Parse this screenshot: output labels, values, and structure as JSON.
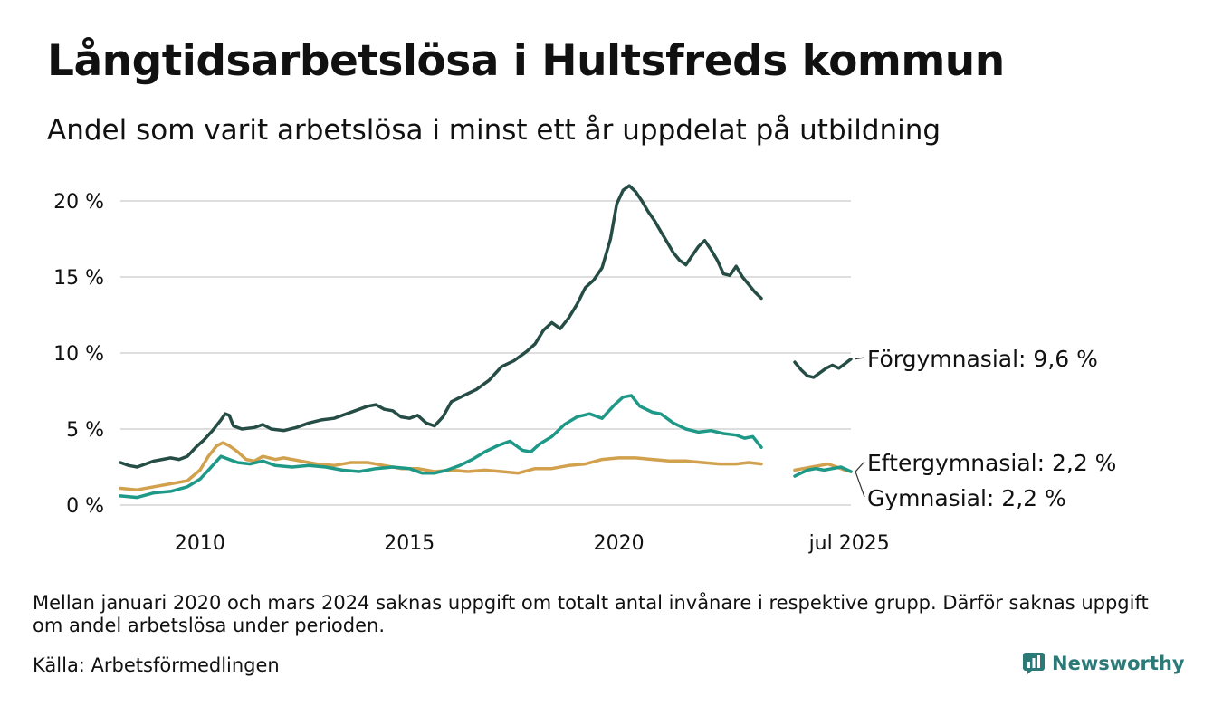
{
  "title": "Långtidsarbetslösa i Hultsfreds kommun",
  "subtitle": "Andel som varit arbetslösa i minst ett år uppdelat på utbildning",
  "note": "Mellan januari 2020 och mars 2024 saknas uppgift om totalt antal invånare i respektive grupp. Därför saknas uppgift om andel arbetslösa under perioden.",
  "source": "Källa: Arbetsförmedlingen",
  "brand": "Newsworthy",
  "chart_data": {
    "type": "line",
    "title": "Långtidsarbetslösa i Hultsfreds kommun",
    "subtitle": "Andel som varit arbetslösa i minst ett år uppdelat på utbildning",
    "y_ticks": [
      0,
      5,
      10,
      15,
      20
    ],
    "y_tick_labels": [
      "0 %",
      "5 %",
      "10 %",
      "15 %",
      "20 %"
    ],
    "ylim": [
      0,
      21.5
    ],
    "x_ticks": [
      2010,
      2015,
      2020,
      2025.5
    ],
    "x_tick_labels": [
      "2010",
      "2015",
      "2020",
      "jul 2025"
    ],
    "xlim": [
      2008.1,
      2025.54
    ],
    "grid": true,
    "legend": "direct labels at right end of lines",
    "series": [
      {
        "name": "Förgymnasial",
        "end_label": "Förgymnasial: 9,6 %",
        "color": "#264d45",
        "segments": [
          [
            [
              2008.1,
              2.8
            ],
            [
              2008.3,
              2.6
            ],
            [
              2008.5,
              2.5
            ],
            [
              2008.7,
              2.7
            ],
            [
              2008.9,
              2.9
            ],
            [
              2009.1,
              3.0
            ],
            [
              2009.3,
              3.1
            ],
            [
              2009.5,
              3.0
            ],
            [
              2009.7,
              3.2
            ],
            [
              2009.9,
              3.8
            ],
            [
              2010.1,
              4.3
            ],
            [
              2010.3,
              4.9
            ],
            [
              2010.5,
              5.6
            ],
            [
              2010.6,
              6.0
            ],
            [
              2010.7,
              5.9
            ],
            [
              2010.8,
              5.2
            ],
            [
              2011.0,
              5.0
            ],
            [
              2011.3,
              5.1
            ],
            [
              2011.5,
              5.3
            ],
            [
              2011.7,
              5.0
            ],
            [
              2012.0,
              4.9
            ],
            [
              2012.3,
              5.1
            ],
            [
              2012.6,
              5.4
            ],
            [
              2012.9,
              5.6
            ],
            [
              2013.2,
              5.7
            ],
            [
              2013.5,
              6.0
            ],
            [
              2013.8,
              6.3
            ],
            [
              2014.0,
              6.5
            ],
            [
              2014.2,
              6.6
            ],
            [
              2014.4,
              6.3
            ],
            [
              2014.6,
              6.2
            ],
            [
              2014.8,
              5.8
            ],
            [
              2015.0,
              5.7
            ],
            [
              2015.2,
              5.9
            ],
            [
              2015.4,
              5.4
            ],
            [
              2015.6,
              5.2
            ],
            [
              2015.8,
              5.8
            ],
            [
              2016.0,
              6.8
            ],
            [
              2016.3,
              7.2
            ],
            [
              2016.6,
              7.6
            ],
            [
              2016.9,
              8.2
            ],
            [
              2017.2,
              9.1
            ],
            [
              2017.5,
              9.5
            ],
            [
              2017.8,
              10.1
            ],
            [
              2018.0,
              10.6
            ],
            [
              2018.2,
              11.5
            ],
            [
              2018.4,
              12.0
            ],
            [
              2018.6,
              11.6
            ],
            [
              2018.8,
              12.3
            ],
            [
              2019.0,
              13.2
            ],
            [
              2019.2,
              14.3
            ],
            [
              2019.4,
              14.8
            ],
            [
              2019.6,
              15.6
            ],
            [
              2019.8,
              17.5
            ],
            [
              2019.95,
              19.8
            ],
            [
              2020.1,
              20.7
            ],
            [
              2020.25,
              21.0
            ],
            [
              2020.4,
              20.6
            ],
            [
              2020.55,
              20.0
            ],
            [
              2020.7,
              19.3
            ],
            [
              2020.85,
              18.7
            ],
            [
              2021.0,
              18.0
            ],
            [
              2021.15,
              17.3
            ],
            [
              2021.3,
              16.6
            ],
            [
              2021.45,
              16.1
            ],
            [
              2021.6,
              15.8
            ],
            [
              2021.75,
              16.4
            ],
            [
              2021.9,
              17.0
            ],
            [
              2022.05,
              17.4
            ],
            [
              2022.2,
              16.8
            ],
            [
              2022.35,
              16.1
            ],
            [
              2022.5,
              15.2
            ],
            [
              2022.65,
              15.1
            ],
            [
              2022.8,
              15.7
            ],
            [
              2022.95,
              15.0
            ],
            [
              2023.1,
              14.5
            ],
            [
              2023.25,
              14.0
            ],
            [
              2023.4,
              13.6
            ]
          ],
          [
            [
              2024.2,
              9.4
            ],
            [
              2024.35,
              8.9
            ],
            [
              2024.5,
              8.5
            ],
            [
              2024.65,
              8.4
            ],
            [
              2024.8,
              8.7
            ],
            [
              2024.95,
              9.0
            ],
            [
              2025.1,
              9.2
            ],
            [
              2025.25,
              9.0
            ],
            [
              2025.4,
              9.3
            ],
            [
              2025.54,
              9.6
            ]
          ]
        ]
      },
      {
        "name": "Eftergymnasial",
        "end_label": "Eftergymnasial: 2,2 %",
        "color": "#d1a14e",
        "segments": [
          [
            [
              2008.1,
              1.1
            ],
            [
              2008.5,
              1.0
            ],
            [
              2008.9,
              1.2
            ],
            [
              2009.3,
              1.4
            ],
            [
              2009.7,
              1.6
            ],
            [
              2010.0,
              2.3
            ],
            [
              2010.2,
              3.2
            ],
            [
              2010.4,
              3.9
            ],
            [
              2010.55,
              4.1
            ],
            [
              2010.7,
              3.9
            ],
            [
              2010.9,
              3.5
            ],
            [
              2011.1,
              3.0
            ],
            [
              2011.3,
              2.9
            ],
            [
              2011.5,
              3.2
            ],
            [
              2011.8,
              3.0
            ],
            [
              2012.0,
              3.1
            ],
            [
              2012.4,
              2.9
            ],
            [
              2012.8,
              2.7
            ],
            [
              2013.2,
              2.6
            ],
            [
              2013.6,
              2.8
            ],
            [
              2014.0,
              2.8
            ],
            [
              2014.4,
              2.6
            ],
            [
              2014.8,
              2.4
            ],
            [
              2015.2,
              2.4
            ],
            [
              2015.6,
              2.2
            ],
            [
              2016.0,
              2.3
            ],
            [
              2016.4,
              2.2
            ],
            [
              2016.8,
              2.3
            ],
            [
              2017.2,
              2.2
            ],
            [
              2017.6,
              2.1
            ],
            [
              2018.0,
              2.4
            ],
            [
              2018.4,
              2.4
            ],
            [
              2018.8,
              2.6
            ],
            [
              2019.2,
              2.7
            ],
            [
              2019.6,
              3.0
            ],
            [
              2020.0,
              3.1
            ],
            [
              2020.4,
              3.1
            ],
            [
              2020.8,
              3.0
            ],
            [
              2021.2,
              2.9
            ],
            [
              2021.6,
              2.9
            ],
            [
              2022.0,
              2.8
            ],
            [
              2022.4,
              2.7
            ],
            [
              2022.8,
              2.7
            ],
            [
              2023.1,
              2.8
            ],
            [
              2023.4,
              2.7
            ]
          ],
          [
            [
              2024.2,
              2.3
            ],
            [
              2024.4,
              2.4
            ],
            [
              2024.6,
              2.5
            ],
            [
              2024.8,
              2.6
            ],
            [
              2025.0,
              2.7
            ],
            [
              2025.2,
              2.5
            ],
            [
              2025.4,
              2.3
            ],
            [
              2025.54,
              2.2
            ]
          ]
        ]
      },
      {
        "name": "Gymnasial",
        "end_label": "Gymnasial: 2,2 %",
        "color": "#1e9987",
        "segments": [
          [
            [
              2008.1,
              0.6
            ],
            [
              2008.5,
              0.5
            ],
            [
              2008.9,
              0.8
            ],
            [
              2009.3,
              0.9
            ],
            [
              2009.7,
              1.2
            ],
            [
              2010.0,
              1.7
            ],
            [
              2010.2,
              2.3
            ],
            [
              2010.4,
              2.9
            ],
            [
              2010.5,
              3.2
            ],
            [
              2010.7,
              3.0
            ],
            [
              2010.9,
              2.8
            ],
            [
              2011.2,
              2.7
            ],
            [
              2011.5,
              2.9
            ],
            [
              2011.8,
              2.6
            ],
            [
              2012.2,
              2.5
            ],
            [
              2012.6,
              2.6
            ],
            [
              2013.0,
              2.5
            ],
            [
              2013.4,
              2.3
            ],
            [
              2013.8,
              2.2
            ],
            [
              2014.2,
              2.4
            ],
            [
              2014.6,
              2.5
            ],
            [
              2015.0,
              2.4
            ],
            [
              2015.3,
              2.1
            ],
            [
              2015.6,
              2.1
            ],
            [
              2015.9,
              2.3
            ],
            [
              2016.2,
              2.6
            ],
            [
              2016.5,
              3.0
            ],
            [
              2016.8,
              3.5
            ],
            [
              2017.1,
              3.9
            ],
            [
              2017.4,
              4.2
            ],
            [
              2017.7,
              3.6
            ],
            [
              2017.9,
              3.5
            ],
            [
              2018.1,
              4.0
            ],
            [
              2018.4,
              4.5
            ],
            [
              2018.7,
              5.3
            ],
            [
              2019.0,
              5.8
            ],
            [
              2019.3,
              6.0
            ],
            [
              2019.6,
              5.7
            ],
            [
              2019.9,
              6.6
            ],
            [
              2020.1,
              7.1
            ],
            [
              2020.3,
              7.2
            ],
            [
              2020.5,
              6.5
            ],
            [
              2020.8,
              6.1
            ],
            [
              2021.0,
              6.0
            ],
            [
              2021.3,
              5.4
            ],
            [
              2021.6,
              5.0
            ],
            [
              2021.9,
              4.8
            ],
            [
              2022.2,
              4.9
            ],
            [
              2022.5,
              4.7
            ],
            [
              2022.8,
              4.6
            ],
            [
              2023.0,
              4.4
            ],
            [
              2023.2,
              4.5
            ],
            [
              2023.4,
              3.8
            ]
          ],
          [
            [
              2024.2,
              1.9
            ],
            [
              2024.35,
              2.1
            ],
            [
              2024.5,
              2.3
            ],
            [
              2024.7,
              2.4
            ],
            [
              2024.9,
              2.3
            ],
            [
              2025.1,
              2.4
            ],
            [
              2025.3,
              2.5
            ],
            [
              2025.54,
              2.2
            ]
          ]
        ]
      }
    ]
  }
}
